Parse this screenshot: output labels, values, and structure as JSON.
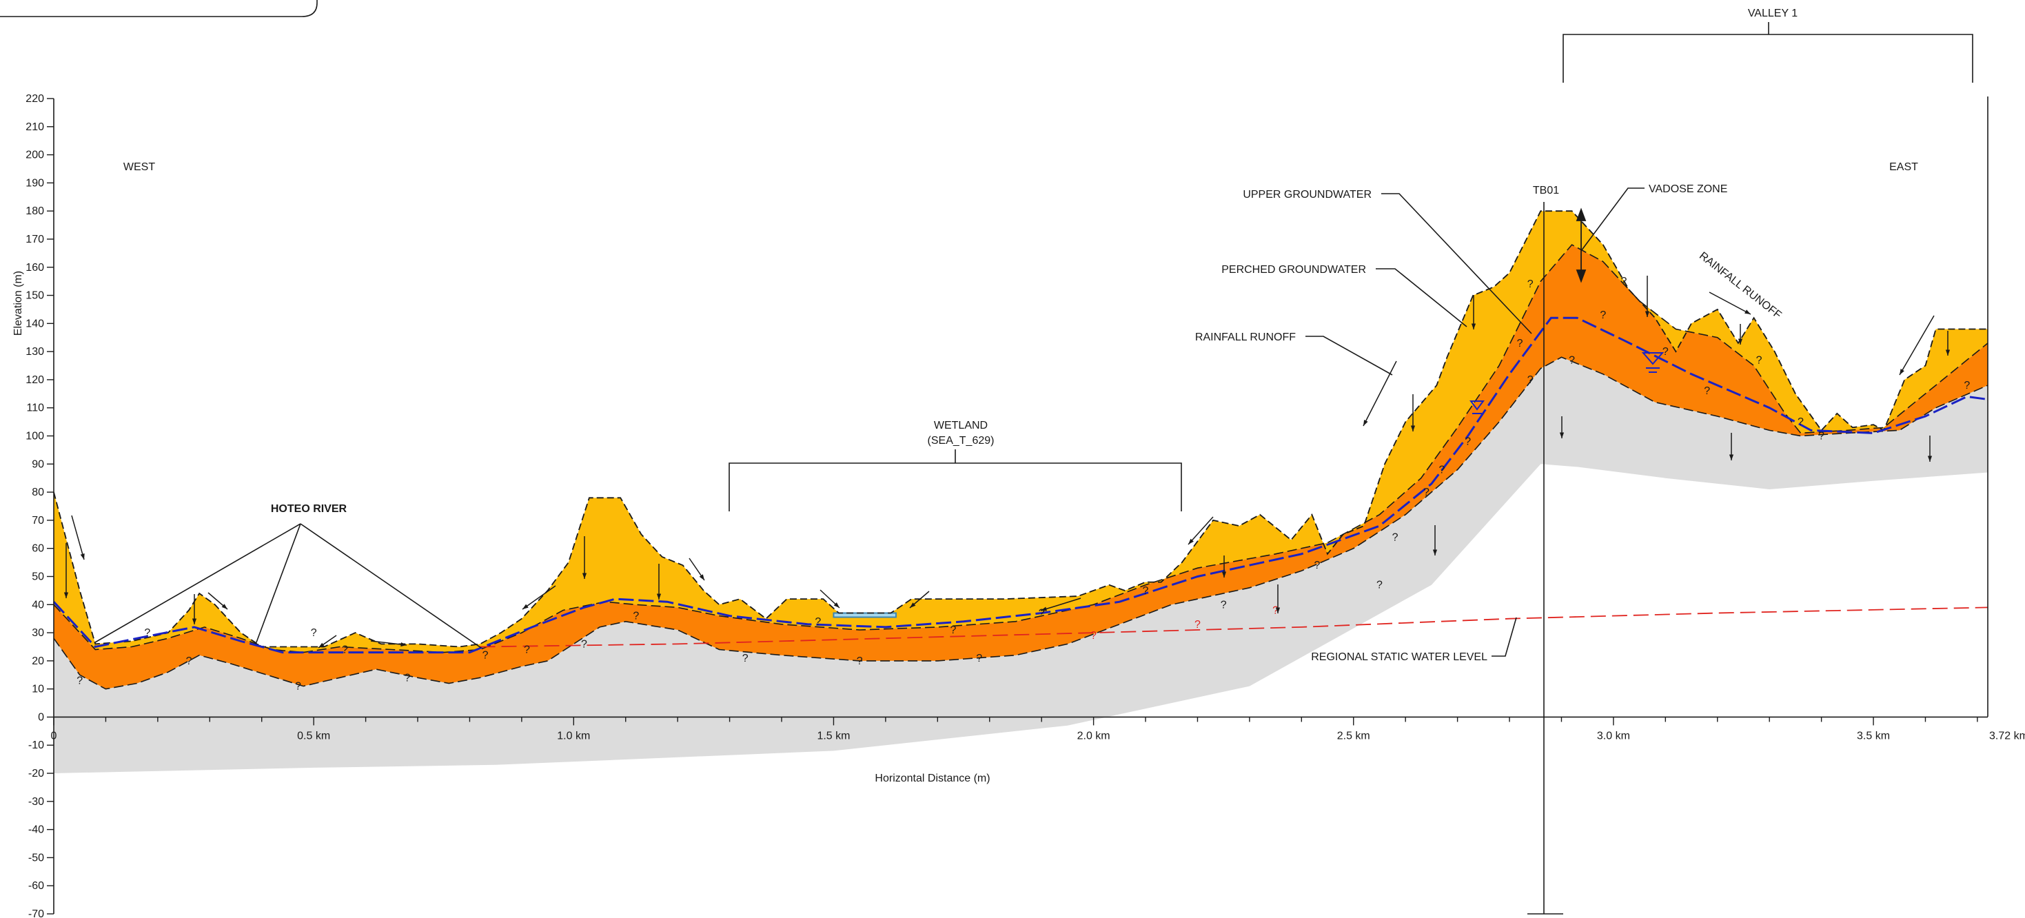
{
  "axes": {
    "y_label": "Elevation (m)",
    "x_label": "Horizontal Distance (m)",
    "y_min": -70,
    "y_max": 220,
    "y_step": 10,
    "x_max_km": 3.72,
    "x_ticks": [
      {
        "km": 0,
        "label": "0"
      },
      {
        "km": 0.5,
        "label": "0.5 km"
      },
      {
        "km": 1.0,
        "label": "1.0 km"
      },
      {
        "km": 1.5,
        "label": "1.5 km"
      },
      {
        "km": 2.0,
        "label": "2.0 km"
      },
      {
        "km": 2.5,
        "label": "2.5 km"
      },
      {
        "km": 3.0,
        "label": "3.0 km"
      },
      {
        "km": 3.5,
        "label": "3.5 km"
      },
      {
        "km": 3.72,
        "label": "3.72 km"
      }
    ]
  },
  "labels": {
    "west": "WEST",
    "east": "EAST",
    "hoteo_river": "HOTEO RIVER",
    "wetland_line1": "WETLAND",
    "wetland_line2": "(SEA_T_629)",
    "valley": "VALLEY 1",
    "tb01": "TB01",
    "upper_groundwater": "UPPER GROUNDWATER",
    "perched_groundwater": "PERCHED GROUNDWATER",
    "rainfall_runoff_left": "RAINFALL RUNOFF",
    "rainfall_runoff_right": "RAINFALL RUNOFF",
    "vadose_zone": "VADOSE ZONE",
    "regional_static_water_level": "REGIONAL STATIC WATER LEVEL",
    "uncertain_mark": "?"
  },
  "colors": {
    "ground_surface_layer": "#fcbb07",
    "saturated_layer": "#fb8105",
    "basement": "#dcdcdc",
    "groundwater_line": "#1a22c4",
    "regional_water_level": "#e0241f",
    "pond_water": "#a9d8ea",
    "ink": "#1a1a1a"
  },
  "profiles": {
    "ground_surface": [
      [
        0,
        80
      ],
      [
        0.05,
        45
      ],
      [
        0.08,
        26
      ],
      [
        0.15,
        27
      ],
      [
        0.22,
        30
      ],
      [
        0.26,
        38
      ],
      [
        0.28,
        44
      ],
      [
        0.31,
        40
      ],
      [
        0.36,
        30
      ],
      [
        0.4,
        25
      ],
      [
        0.48,
        25
      ],
      [
        0.52,
        25
      ],
      [
        0.58,
        30
      ],
      [
        0.63,
        26
      ],
      [
        0.7,
        26
      ],
      [
        0.78,
        25
      ],
      [
        0.82,
        26
      ],
      [
        0.86,
        30
      ],
      [
        0.9,
        35
      ],
      [
        0.95,
        45
      ],
      [
        0.99,
        55
      ],
      [
        1.03,
        78
      ],
      [
        1.09,
        78
      ],
      [
        1.13,
        65
      ],
      [
        1.17,
        57
      ],
      [
        1.21,
        54
      ],
      [
        1.25,
        45
      ],
      [
        1.28,
        40
      ],
      [
        1.32,
        42
      ],
      [
        1.37,
        35
      ],
      [
        1.41,
        42
      ],
      [
        1.48,
        42
      ],
      [
        1.51,
        37
      ],
      [
        1.61,
        37
      ],
      [
        1.65,
        42
      ],
      [
        1.83,
        42
      ],
      [
        1.97,
        43
      ],
      [
        2.03,
        47
      ],
      [
        2.06,
        45
      ],
      [
        2.1,
        48
      ],
      [
        2.13,
        48
      ],
      [
        2.17,
        55
      ],
      [
        2.23,
        70
      ],
      [
        2.28,
        68
      ],
      [
        2.32,
        72
      ],
      [
        2.38,
        63
      ],
      [
        2.42,
        72
      ],
      [
        2.45,
        58
      ],
      [
        2.48,
        65
      ],
      [
        2.52,
        68
      ],
      [
        2.56,
        90
      ],
      [
        2.6,
        105
      ],
      [
        2.66,
        118
      ],
      [
        2.68,
        128
      ],
      [
        2.73,
        150
      ],
      [
        2.77,
        153
      ],
      [
        2.8,
        158
      ],
      [
        2.86,
        180
      ],
      [
        2.92,
        180
      ],
      [
        2.98,
        168
      ],
      [
        3.03,
        152
      ],
      [
        3.08,
        142
      ],
      [
        3.12,
        130
      ],
      [
        3.15,
        140
      ],
      [
        3.2,
        145
      ],
      [
        3.24,
        133
      ],
      [
        3.27,
        142
      ],
      [
        3.31,
        130
      ],
      [
        3.35,
        115
      ],
      [
        3.4,
        102
      ],
      [
        3.43,
        108
      ],
      [
        3.46,
        103
      ],
      [
        3.5,
        104
      ],
      [
        3.52,
        102
      ],
      [
        3.56,
        120
      ],
      [
        3.6,
        125
      ],
      [
        3.62,
        138
      ],
      [
        3.72,
        138
      ]
    ],
    "upper_layer_base": [
      [
        0,
        40
      ],
      [
        0.08,
        24
      ],
      [
        0.15,
        25
      ],
      [
        0.22,
        28
      ],
      [
        0.29,
        32
      ],
      [
        0.36,
        28
      ],
      [
        0.42,
        24
      ],
      [
        0.48,
        23
      ],
      [
        0.55,
        25
      ],
      [
        0.65,
        24
      ],
      [
        0.75,
        23
      ],
      [
        0.82,
        24
      ],
      [
        0.9,
        30
      ],
      [
        0.98,
        38
      ],
      [
        1.06,
        41
      ],
      [
        1.12,
        40
      ],
      [
        1.2,
        39
      ],
      [
        1.28,
        36
      ],
      [
        1.4,
        33
      ],
      [
        1.55,
        31
      ],
      [
        1.7,
        32
      ],
      [
        1.85,
        34
      ],
      [
        2.0,
        40
      ],
      [
        2.1,
        47
      ],
      [
        2.2,
        53
      ],
      [
        2.35,
        58
      ],
      [
        2.45,
        62
      ],
      [
        2.55,
        72
      ],
      [
        2.63,
        85
      ],
      [
        2.7,
        103
      ],
      [
        2.78,
        125
      ],
      [
        2.86,
        155
      ],
      [
        2.92,
        168
      ],
      [
        2.98,
        162
      ],
      [
        3.05,
        148
      ],
      [
        3.12,
        138
      ],
      [
        3.2,
        135
      ],
      [
        3.27,
        125
      ],
      [
        3.33,
        108
      ],
      [
        3.36,
        101
      ],
      [
        3.45,
        102
      ],
      [
        3.52,
        103
      ],
      [
        3.6,
        115
      ],
      [
        3.66,
        124
      ],
      [
        3.72,
        133
      ]
    ],
    "saturated_base": [
      [
        0,
        28
      ],
      [
        0.05,
        15
      ],
      [
        0.1,
        10
      ],
      [
        0.16,
        12
      ],
      [
        0.22,
        16
      ],
      [
        0.28,
        22
      ],
      [
        0.34,
        19
      ],
      [
        0.41,
        15
      ],
      [
        0.48,
        11
      ],
      [
        0.55,
        14
      ],
      [
        0.62,
        17
      ],
      [
        0.7,
        14
      ],
      [
        0.76,
        12
      ],
      [
        0.82,
        14
      ],
      [
        0.9,
        18
      ],
      [
        0.95,
        20
      ],
      [
        1.0,
        26
      ],
      [
        1.05,
        32
      ],
      [
        1.1,
        34
      ],
      [
        1.2,
        31
      ],
      [
        1.28,
        24
      ],
      [
        1.4,
        22
      ],
      [
        1.55,
        20
      ],
      [
        1.7,
        20
      ],
      [
        1.85,
        22
      ],
      [
        1.95,
        26
      ],
      [
        2.05,
        33
      ],
      [
        2.15,
        40
      ],
      [
        2.3,
        46
      ],
      [
        2.4,
        52
      ],
      [
        2.5,
        60
      ],
      [
        2.6,
        72
      ],
      [
        2.7,
        88
      ],
      [
        2.78,
        105
      ],
      [
        2.86,
        124
      ],
      [
        2.9,
        128
      ],
      [
        2.98,
        122
      ],
      [
        3.08,
        112
      ],
      [
        3.2,
        107
      ],
      [
        3.3,
        102
      ],
      [
        3.36,
        100
      ],
      [
        3.45,
        101
      ],
      [
        3.55,
        102
      ],
      [
        3.62,
        110
      ],
      [
        3.72,
        118
      ]
    ],
    "basement_top": [
      [
        0,
        -20
      ],
      [
        0.5,
        -18
      ],
      [
        0.85,
        -17
      ],
      [
        1.5,
        -12
      ],
      [
        1.95,
        -3
      ],
      [
        2.3,
        11
      ],
      [
        2.65,
        47
      ],
      [
        2.86,
        90
      ],
      [
        2.93,
        89
      ],
      [
        3.1,
        85
      ],
      [
        3.3,
        81
      ],
      [
        3.5,
        84
      ],
      [
        3.72,
        87
      ]
    ],
    "perched_groundwater_line": [
      [
        0,
        41
      ],
      [
        0.08,
        25
      ],
      [
        0.16,
        28
      ],
      [
        0.27,
        32
      ],
      [
        0.36,
        27
      ],
      [
        0.44,
        23
      ],
      [
        0.55,
        23
      ],
      [
        0.68,
        23
      ],
      [
        0.8,
        23
      ],
      [
        0.92,
        32
      ],
      [
        1.02,
        39
      ],
      [
        1.08,
        42
      ],
      [
        1.18,
        41
      ],
      [
        1.3,
        36
      ],
      [
        1.45,
        33
      ],
      [
        1.6,
        32
      ],
      [
        1.75,
        34
      ],
      [
        1.9,
        37
      ],
      [
        2.05,
        41
      ],
      [
        2.2,
        50
      ],
      [
        2.4,
        58
      ],
      [
        2.55,
        68
      ],
      [
        2.65,
        83
      ],
      [
        2.72,
        100
      ],
      [
        2.8,
        122
      ],
      [
        2.88,
        142
      ],
      [
        2.93,
        142
      ],
      [
        3.02,
        134
      ],
      [
        3.15,
        122
      ],
      [
        3.3,
        110
      ],
      [
        3.38,
        102
      ],
      [
        3.5,
        101
      ],
      [
        3.6,
        107
      ],
      [
        3.68,
        114
      ],
      [
        3.72,
        113
      ]
    ],
    "regional_water_level": [
      [
        0.82,
        25
      ],
      [
        1.2,
        26
      ],
      [
        1.6,
        28
      ],
      [
        2.0,
        30
      ],
      [
        2.4,
        32
      ],
      [
        2.8,
        35
      ],
      [
        3.2,
        37
      ],
      [
        3.72,
        39
      ]
    ],
    "uncertain_marks": [
      [
        0.05,
        13
      ],
      [
        0.26,
        20
      ],
      [
        0.47,
        11
      ],
      [
        0.68,
        14
      ],
      [
        0.83,
        22
      ],
      [
        0.91,
        24
      ],
      [
        1.02,
        26
      ],
      [
        1.12,
        36
      ],
      [
        1.33,
        21
      ],
      [
        1.55,
        20
      ],
      [
        1.78,
        21
      ],
      [
        2.0,
        29
      ],
      [
        2.2,
        33
      ],
      [
        2.35,
        38
      ],
      [
        2.43,
        54
      ],
      [
        2.58,
        64
      ],
      [
        2.64,
        80
      ],
      [
        2.72,
        98
      ],
      [
        2.84,
        120
      ],
      [
        2.92,
        127
      ],
      [
        2.98,
        143
      ],
      [
        3.1,
        130
      ],
      [
        3.28,
        127
      ],
      [
        3.4,
        100
      ],
      [
        0.5,
        30
      ],
      [
        1.47,
        34
      ],
      [
        1.73,
        31
      ],
      [
        1.9,
        37
      ],
      [
        2.1,
        45
      ],
      [
        2.25,
        40
      ],
      [
        2.55,
        47
      ],
      [
        2.67,
        88
      ],
      [
        2.82,
        133
      ],
      [
        2.84,
        154
      ],
      [
        3.02,
        155
      ],
      [
        3.18,
        116
      ],
      [
        3.36,
        105
      ],
      [
        3.68,
        118
      ],
      [
        0.18,
        30
      ],
      [
        0.56,
        24
      ]
    ],
    "pond": [
      [
        1.5,
        37
      ],
      [
        1.62,
        37
      ]
    ]
  }
}
